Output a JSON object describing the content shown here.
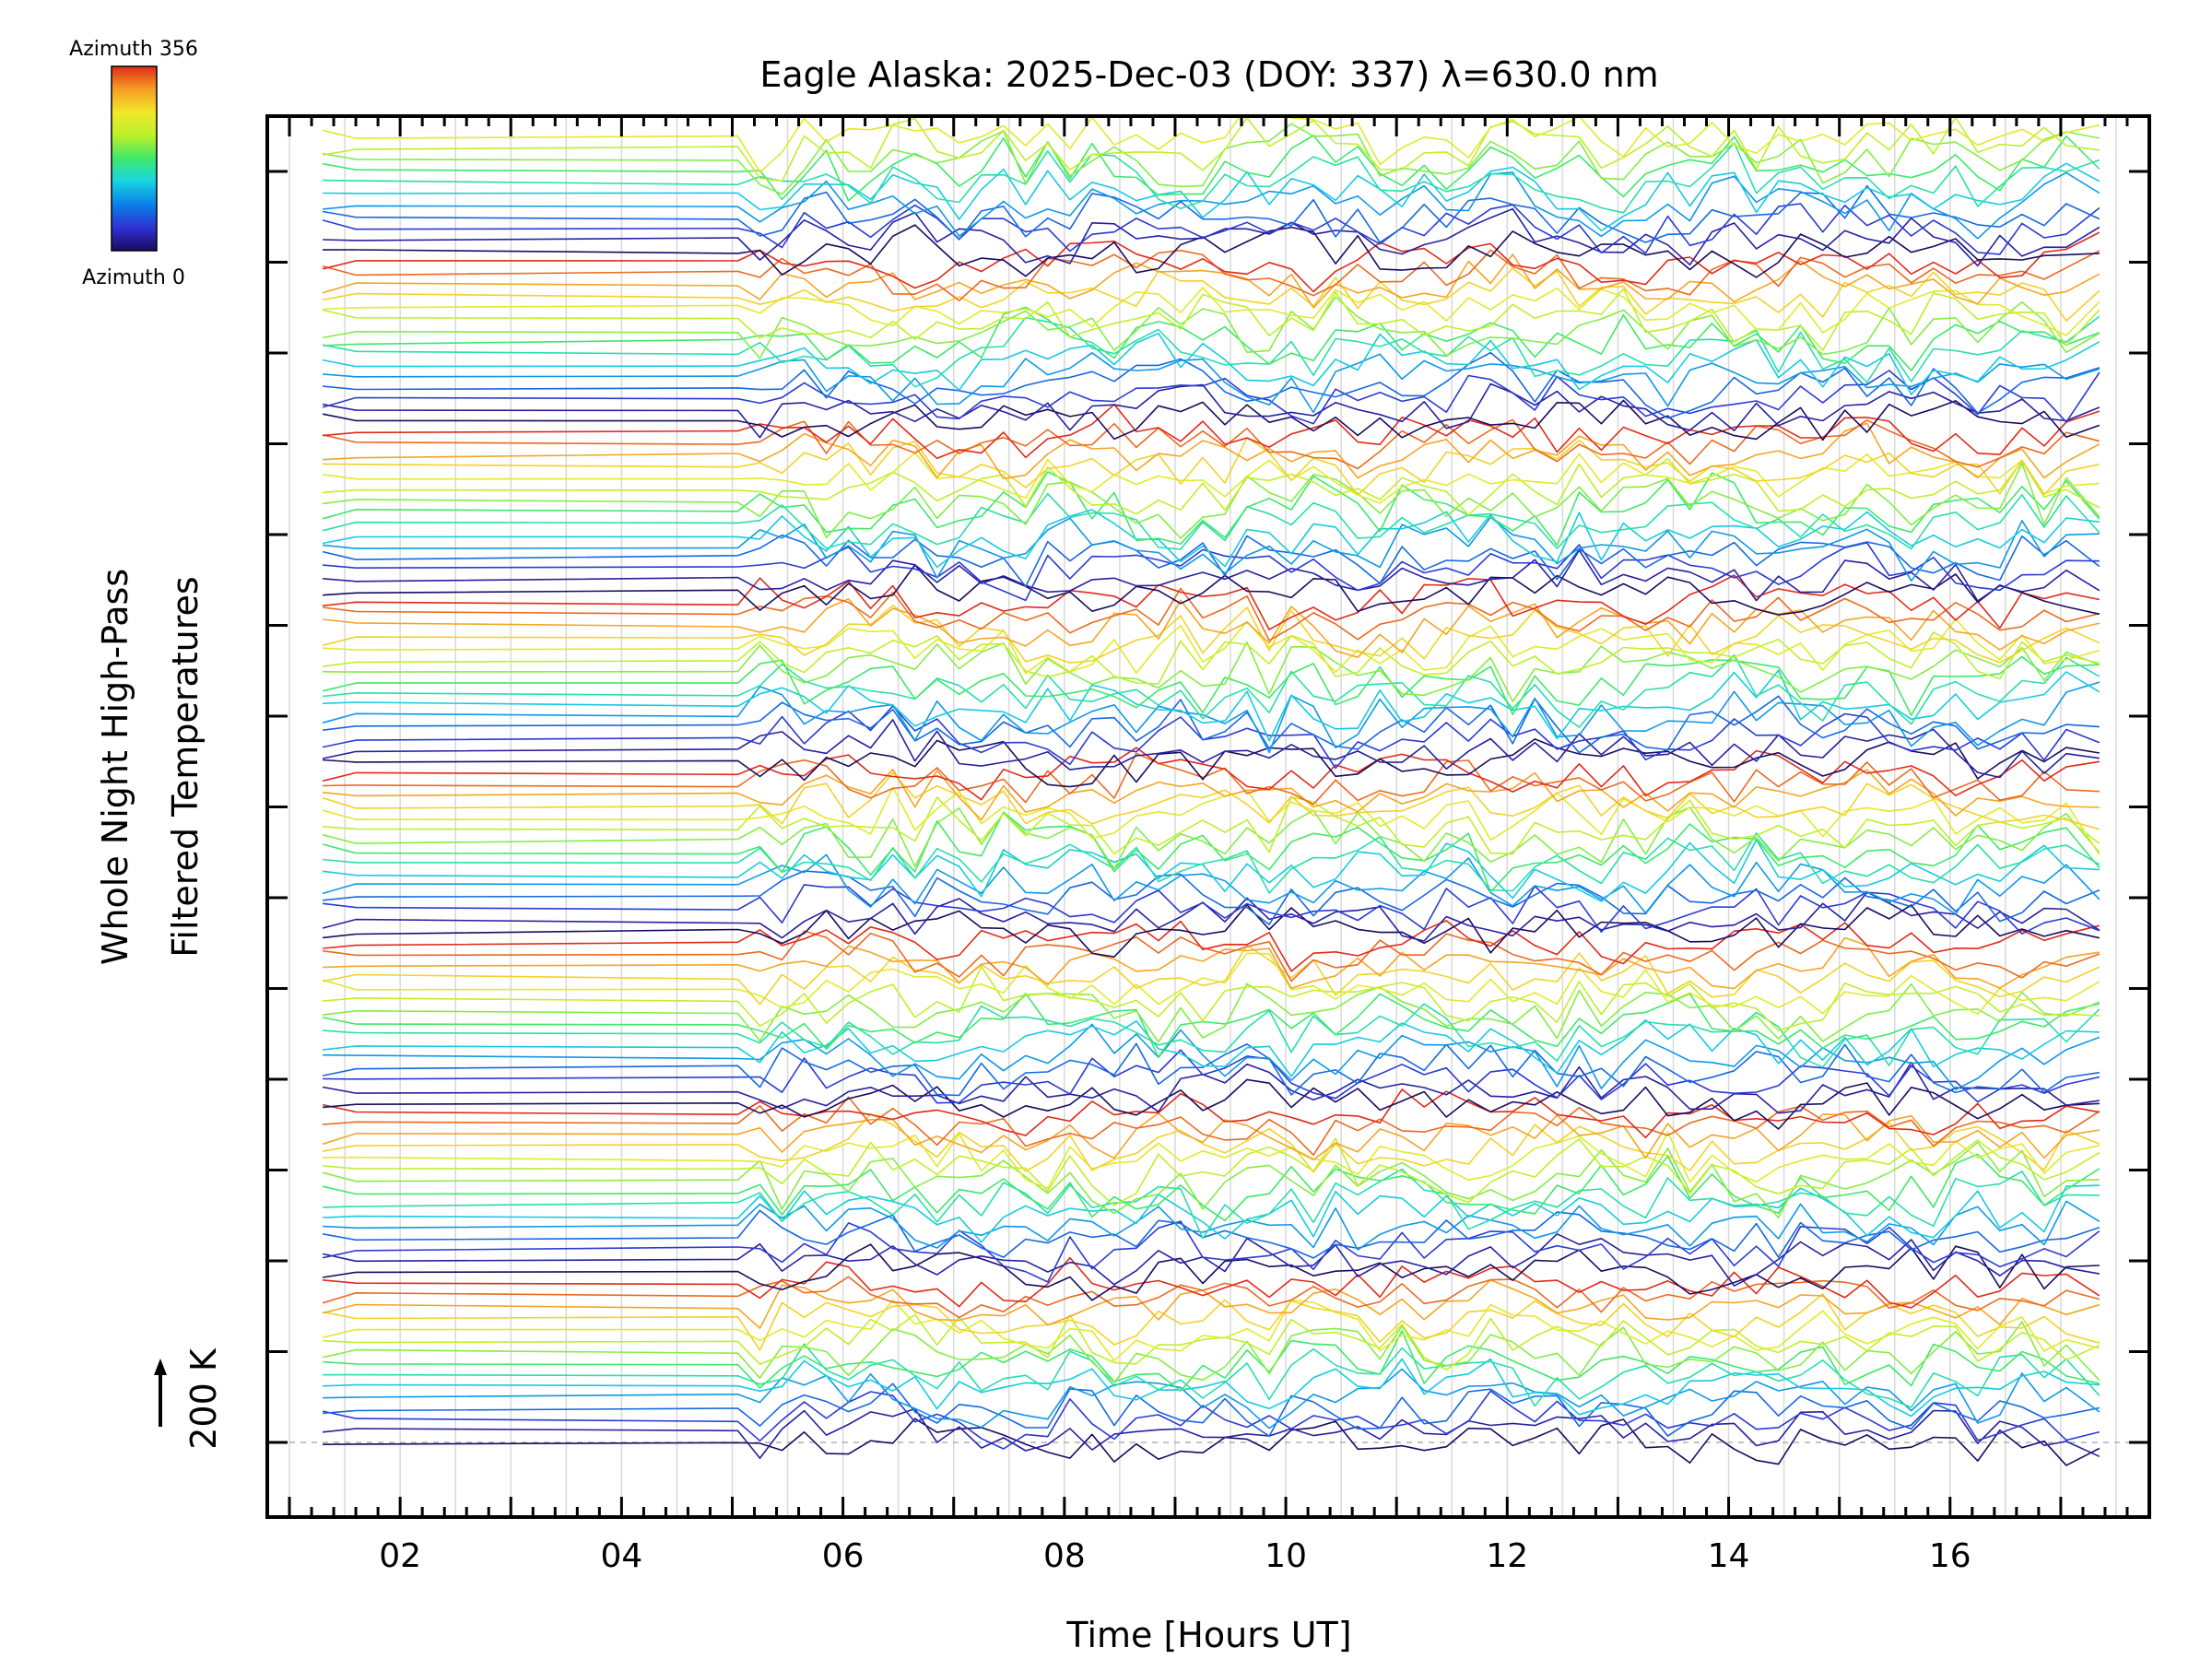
{
  "chart_data": {
    "type": "line",
    "title": "Eagle Alaska: 2025-Dec-03 (DOY: 337) λ=630.0 nm",
    "xlabel": "Time [Hours UT]",
    "ylabel_line1": "Whole Night High-Pass",
    "ylabel_line2": "Filtered Temperatures",
    "xlim": [
      0.8,
      17.8
    ],
    "x_ticks": [
      2,
      4,
      6,
      8,
      10,
      12,
      14,
      16
    ],
    "x_tick_labels": [
      "02",
      "04",
      "06",
      "08",
      "10",
      "12",
      "14",
      "16"
    ],
    "y_offset_step_K": 200,
    "y_offsets": 15,
    "y_ticks": [
      0,
      1,
      2,
      3,
      4,
      5,
      6,
      7,
      8,
      9,
      10,
      11,
      12,
      13,
      14
    ],
    "scale_bar_label": "200 K",
    "grid": true,
    "colorbar": {
      "label_top": "Azimuth 356",
      "label_bottom": "Azimuth 0",
      "min_azimuth": 0,
      "max_azimuth": 356,
      "colormap": [
        "#1a0b5e",
        "#2f2fd0",
        "#0a7fe8",
        "#18d6e0",
        "#3ee86a",
        "#b8f02a",
        "#f2e82a",
        "#f59a22",
        "#e02a1a"
      ]
    },
    "series_groups": 8,
    "series_per_group": 15,
    "data_sample_times_hours": [
      1.3,
      1.6,
      5.05,
      5.25,
      5.45,
      5.65,
      5.85,
      6.05,
      6.25,
      6.45,
      6.65,
      6.85,
      7.05,
      7.25,
      7.45,
      7.65,
      7.85,
      8.05,
      8.25,
      8.45,
      8.65,
      8.85,
      9.05,
      9.25,
      9.45,
      9.65,
      9.85,
      10.05,
      10.25,
      10.45,
      10.65,
      10.85,
      11.05,
      11.25,
      11.45,
      11.65,
      11.85,
      12.05,
      12.25,
      12.45,
      12.65,
      12.85,
      13.05,
      13.25,
      13.45,
      13.65,
      13.85,
      14.05,
      14.25,
      14.45,
      14.65,
      14.85,
      15.05,
      15.25,
      15.45,
      15.65,
      15.85,
      16.05,
      16.25,
      16.45,
      16.65,
      16.85,
      17.05,
      17.35
    ]
  },
  "colors": {
    "frame": "#000000",
    "grid": "#d9d9d9",
    "baseline": "#b0b0b0"
  }
}
